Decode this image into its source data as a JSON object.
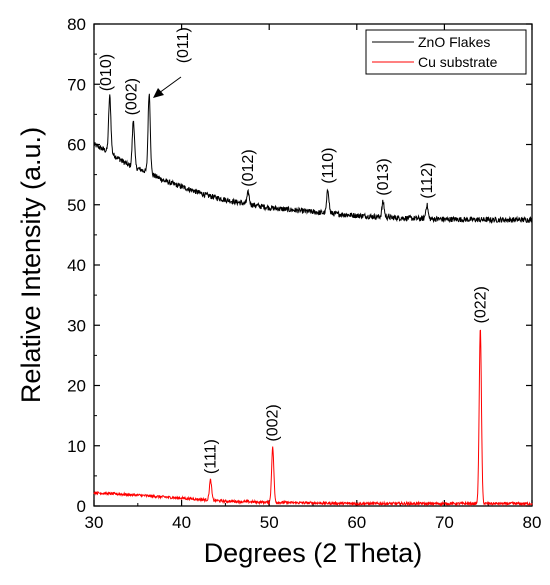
{
  "chart_data": {
    "type": "line",
    "xlabel": "Degrees (2 Theta)",
    "ylabel": "Relative Intensity (a.u.)",
    "xlim": [
      30,
      80
    ],
    "ylim": [
      0,
      80
    ],
    "x_ticks": [
      30,
      40,
      50,
      60,
      70,
      80
    ],
    "y_ticks": [
      0,
      10,
      20,
      30,
      40,
      50,
      60,
      70,
      80
    ],
    "grid": false,
    "legend_position": "top-right",
    "series": [
      {
        "name": "ZnO Flakes",
        "color": "#000000",
        "baseline": [
          [
            30,
            60
          ],
          [
            32,
            58.5
          ],
          [
            34,
            56.5
          ],
          [
            36,
            55.5
          ],
          [
            38,
            54
          ],
          [
            40,
            53
          ],
          [
            43,
            51.5
          ],
          [
            46,
            50.5
          ],
          [
            50,
            49.5
          ],
          [
            55,
            48.8
          ],
          [
            60,
            48.2
          ],
          [
            65,
            47.8
          ],
          [
            70,
            47.6
          ],
          [
            75,
            47.5
          ],
          [
            80,
            47.5
          ]
        ],
        "peaks": [
          {
            "x": 31.8,
            "y": 68,
            "label": "(010)"
          },
          {
            "x": 34.5,
            "y": 64,
            "label": "(002)"
          },
          {
            "x": 36.3,
            "y": 68.5,
            "label": "(011)"
          },
          {
            "x": 47.6,
            "y": 52,
            "label": "(012)"
          },
          {
            "x": 56.7,
            "y": 52.5,
            "label": "(110)"
          },
          {
            "x": 63.0,
            "y": 50.5,
            "label": "(013)"
          },
          {
            "x": 68.0,
            "y": 50,
            "label": "(112)"
          }
        ]
      },
      {
        "name": "Cu substrate",
        "color": "#ff0000",
        "baseline": [
          [
            30,
            2.2
          ],
          [
            35,
            1.8
          ],
          [
            40,
            1.3
          ],
          [
            45,
            0.8
          ],
          [
            50,
            0.6
          ],
          [
            55,
            0.5
          ],
          [
            60,
            0.4
          ],
          [
            70,
            0.4
          ],
          [
            80,
            0.4
          ]
        ],
        "peaks": [
          {
            "x": 43.3,
            "y": 4.3,
            "label": "(111)"
          },
          {
            "x": 50.4,
            "y": 9.7,
            "label": "(002)"
          },
          {
            "x": 74.1,
            "y": 29.3,
            "label": "(022)"
          }
        ]
      }
    ]
  }
}
